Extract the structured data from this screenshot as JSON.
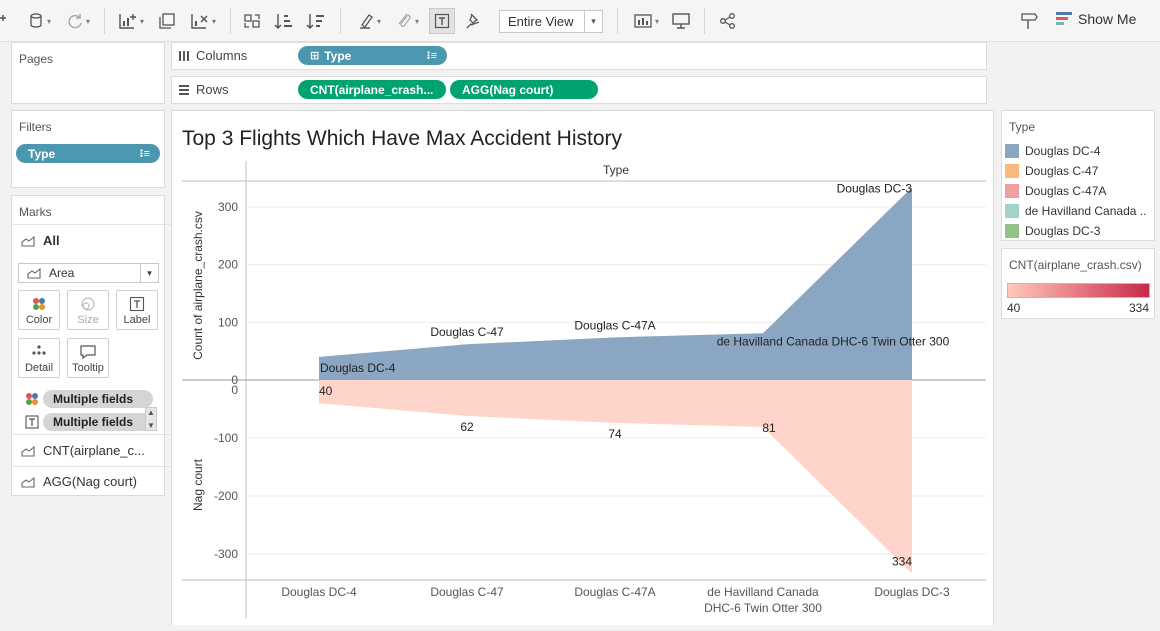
{
  "toolbar": {
    "fit_option": "Entire View",
    "show_me_label": "Show Me"
  },
  "pages": {
    "title": "Pages"
  },
  "columns": {
    "label": "Columns",
    "pill": "Type"
  },
  "rows": {
    "label": "Rows",
    "pills": [
      "CNT(airplane_crash...",
      "AGG(Nag court)"
    ]
  },
  "filters": {
    "title": "Filters",
    "pill": "Type"
  },
  "marks": {
    "title": "Marks",
    "all_label": "All",
    "mark_type": "Area",
    "buttons": [
      "Color",
      "Size",
      "Label",
      "Detail",
      "Tooltip"
    ],
    "multi_fields": [
      "Multiple fields",
      "Multiple fields"
    ],
    "cards": [
      "CNT(airplane_c...",
      "AGG(Nag court)"
    ]
  },
  "legend_type": {
    "title": "Type",
    "items": [
      {
        "label": "Douglas DC-4",
        "color": "#8aa6c2"
      },
      {
        "label": "Douglas C-47",
        "color": "#f7b97c"
      },
      {
        "label": "Douglas C-47A",
        "color": "#ef9f9f"
      },
      {
        "label": "de Havilland Canada ..",
        "color": "#a5d1c9"
      },
      {
        "label": "Douglas DC-3",
        "color": "#8fc486"
      }
    ]
  },
  "legend_cnt": {
    "title": "CNT(airplane_crash.csv)",
    "min": "40",
    "max": "334",
    "color_min": "#ffc9bb",
    "color_max": "#c8294a"
  },
  "chart_data": {
    "type": "area",
    "title": "Top 3 Flights Which Have Max Accident History",
    "column_header": "Type",
    "categories": [
      "Douglas DC-4",
      "Douglas C-47",
      "Douglas C-47A",
      "de Havilland Canada DHC-6 Twin Otter 300",
      "Douglas DC-3"
    ],
    "x_tick_labels": [
      [
        "Douglas DC-4"
      ],
      [
        "Douglas C-47"
      ],
      [
        "Douglas C-47A"
      ],
      [
        "de Havilland Canada",
        "DHC-6 Twin Otter 300"
      ],
      [
        "Douglas DC-3"
      ]
    ],
    "series": [
      {
        "name": "CNT(airplane_crash.csv)",
        "values": [
          40,
          62,
          74,
          81,
          334
        ],
        "color": "#8aa6c2"
      },
      {
        "name": "Nag court",
        "values": [
          -40,
          -62,
          -74,
          -81,
          -334
        ],
        "color": "#ffd5cb"
      }
    ],
    "top_axis": {
      "label": "Count of airplane_crash.csv",
      "ticks": [
        0,
        100,
        200,
        300
      ],
      "range": [
        0,
        345
      ]
    },
    "bottom_axis": {
      "label": "Nag court",
      "ticks": [
        0,
        -100,
        -200,
        -300
      ],
      "range": [
        -345,
        0
      ]
    },
    "top_labels": [
      "Douglas DC-4",
      "Douglas C-47",
      "Douglas C-47A",
      "de Havilland Canada DHC-6 Twin Otter 300",
      "Douglas DC-3"
    ],
    "bottom_labels": [
      "40",
      "62",
      "74",
      "81",
      "334"
    ]
  }
}
